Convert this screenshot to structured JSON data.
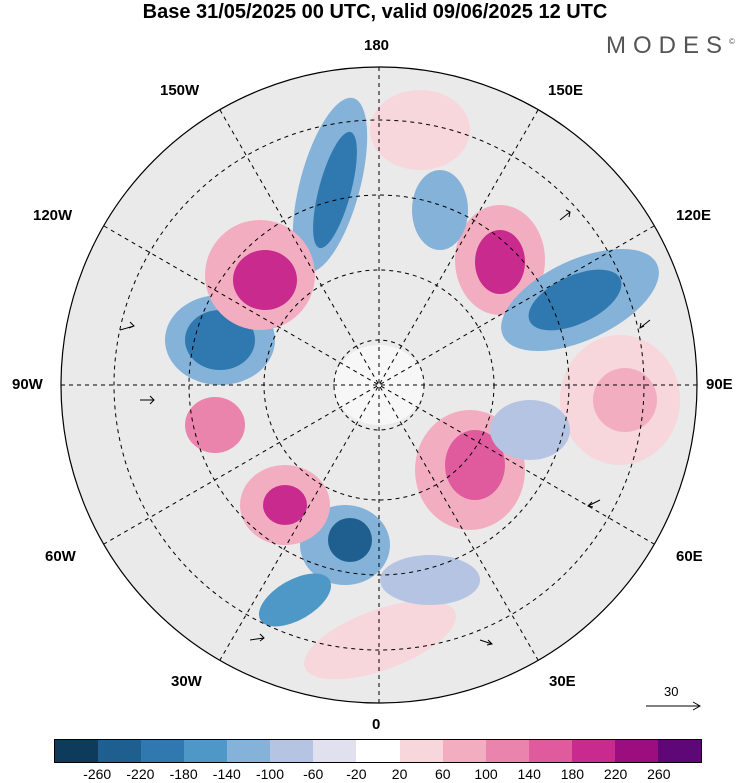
{
  "title": "Base 31/05/2025 00 UTC, valid 09/06/2025 12 UTC",
  "logo": "MODES",
  "logo_mark": "©",
  "longitude_labels": {
    "n180": "180",
    "w150": "150W",
    "e150": "150E",
    "w120": "120W",
    "e120": "120E",
    "w90": "90W",
    "e90": "90E",
    "w60": "60W",
    "e60": "60E",
    "w30": "30W",
    "e30": "30E",
    "s0": "0"
  },
  "vector_scale_label": "30",
  "colorbar": {
    "colors": [
      "#0e3a5c",
      "#1f5f8f",
      "#2f79b0",
      "#4e98c8",
      "#84b2d8",
      "#b5c4e2",
      "#e0e0ef",
      "#ffffff",
      "#f7d6dc",
      "#f2aec0",
      "#ea84ac",
      "#e05a9e",
      "#c92a8e",
      "#9c0e80",
      "#5e0878"
    ],
    "ticks": [
      "-260",
      "-220",
      "-180",
      "-140",
      "-100",
      "-60",
      "-20",
      "20",
      "60",
      "100",
      "140",
      "180",
      "220",
      "260"
    ]
  }
}
